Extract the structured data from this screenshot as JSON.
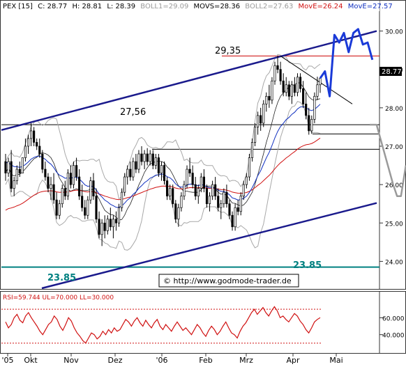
{
  "chart_data": [
    {
      "type": "candlestick",
      "title": "PEX [15]",
      "header": {
        "ticker": "PEX [15]",
        "c": "C: 28.77",
        "h": "H: 28.81",
        "l": "L: 28.39",
        "boll1": "BOLL1=29.09",
        "movs": "MOVS=28.36",
        "boll2": "BOLL2=27.63",
        "move1": "MovE=26.24",
        "move2": "MovE=27.57"
      },
      "ylim": [
        23.3,
        30.5
      ],
      "y_ticks": [
        {
          "value": 24.0,
          "label": "24.00"
        },
        {
          "value": 25.0,
          "label": "25.00"
        },
        {
          "value": 26.0,
          "label": "26.00"
        },
        {
          "value": 27.0,
          "label": "27.00"
        },
        {
          "value": 28.0,
          "label": "28.00"
        },
        {
          "value": 29.0,
          "label": "29.00"
        },
        {
          "value": 30.0,
          "label": "30.00"
        }
      ],
      "last_price_label": "28.77",
      "x_ticks": [
        "'05",
        "Okt",
        "Nov",
        "Dez",
        "'06",
        "Feb",
        "Mrz",
        "Apr",
        "Mai"
      ],
      "annotations": {
        "resistance_1": "29,35",
        "resistance_2": "27,56",
        "support_left": "23.85",
        "support_right": "23.85",
        "source": "© http://www.godmode-trader.de"
      },
      "levels": [
        29.35,
        27.56,
        27.32,
        26.92,
        23.85
      ],
      "channel": {
        "upper": [
          [
            0,
            27.42
          ],
          [
            150,
            30.0
          ]
        ],
        "lower": [
          [
            25,
            23.3
          ],
          [
            150,
            25.52
          ]
        ]
      },
      "ohlc": [
        [
          26.6,
          26.8,
          26.1,
          26.3
        ],
        [
          26.3,
          26.7,
          26.2,
          26.6
        ],
        [
          26.6,
          26.9,
          25.8,
          25.9
        ],
        [
          25.9,
          26.2,
          25.7,
          26.1
        ],
        [
          26.1,
          26.5,
          26.0,
          26.4
        ],
        [
          26.4,
          26.6,
          26.2,
          26.3
        ],
        [
          26.3,
          26.7,
          26.3,
          26.7
        ],
        [
          26.7,
          27.2,
          26.6,
          27.0
        ],
        [
          27.0,
          27.3,
          26.8,
          27.2
        ],
        [
          27.2,
          27.6,
          27.0,
          27.4
        ],
        [
          27.4,
          27.5,
          27.0,
          27.1
        ],
        [
          27.1,
          27.2,
          26.9,
          27.0
        ],
        [
          27.0,
          27.2,
          26.7,
          26.8
        ],
        [
          26.8,
          26.9,
          26.3,
          26.4
        ],
        [
          26.4,
          26.6,
          26.1,
          26.2
        ],
        [
          26.2,
          26.3,
          25.8,
          25.9
        ],
        [
          25.9,
          26.2,
          25.6,
          26.0
        ],
        [
          26.0,
          26.3,
          25.5,
          25.6
        ],
        [
          25.6,
          25.8,
          25.1,
          25.2
        ],
        [
          25.2,
          25.6,
          25.1,
          25.5
        ],
        [
          25.5,
          26.0,
          25.4,
          25.9
        ],
        [
          25.9,
          26.1,
          25.6,
          25.7
        ],
        [
          25.7,
          26.4,
          25.6,
          26.3
        ],
        [
          26.3,
          26.5,
          25.9,
          26.0
        ],
        [
          26.0,
          26.6,
          25.9,
          26.5
        ],
        [
          26.5,
          26.7,
          26.1,
          26.2
        ],
        [
          26.2,
          26.4,
          25.6,
          25.7
        ],
        [
          25.7,
          26.0,
          25.3,
          25.4
        ],
        [
          25.4,
          25.6,
          25.1,
          25.2
        ],
        [
          25.2,
          25.7,
          25.1,
          25.6
        ],
        [
          25.6,
          26.2,
          25.5,
          26.1
        ],
        [
          26.1,
          26.3,
          25.6,
          25.7
        ],
        [
          25.7,
          25.9,
          25.0,
          25.1
        ],
        [
          25.1,
          25.3,
          24.6,
          24.7
        ],
        [
          24.7,
          25.1,
          24.4,
          25.0
        ],
        [
          25.0,
          25.2,
          24.6,
          24.8
        ],
        [
          24.8,
          25.2,
          24.7,
          25.1
        ],
        [
          25.1,
          25.4,
          24.8,
          24.9
        ],
        [
          24.9,
          25.2,
          24.6,
          25.1
        ],
        [
          25.1,
          25.3,
          24.8,
          25.0
        ],
        [
          25.0,
          25.5,
          24.9,
          25.4
        ],
        [
          25.4,
          25.9,
          25.3,
          25.8
        ],
        [
          25.8,
          26.3,
          25.7,
          26.2
        ],
        [
          26.2,
          26.5,
          26.0,
          26.4
        ],
        [
          26.4,
          26.6,
          26.1,
          26.2
        ],
        [
          26.2,
          26.7,
          26.1,
          26.6
        ],
        [
          26.6,
          26.8,
          26.3,
          26.4
        ],
        [
          26.4,
          26.9,
          26.3,
          26.8
        ],
        [
          26.8,
          27.0,
          26.5,
          26.6
        ],
        [
          26.6,
          26.9,
          26.4,
          26.8
        ],
        [
          26.8,
          26.95,
          26.5,
          26.6
        ],
        [
          26.6,
          26.9,
          26.5,
          26.8
        ],
        [
          26.8,
          26.9,
          26.4,
          26.5
        ],
        [
          26.5,
          26.8,
          26.4,
          26.7
        ],
        [
          26.7,
          26.8,
          26.2,
          26.3
        ],
        [
          26.3,
          26.6,
          26.1,
          26.5
        ],
        [
          26.5,
          26.6,
          26.0,
          26.1
        ],
        [
          26.1,
          26.2,
          25.6,
          25.7
        ],
        [
          25.7,
          26.0,
          25.6,
          25.9
        ],
        [
          25.9,
          26.0,
          25.4,
          25.5
        ],
        [
          25.5,
          25.6,
          25.0,
          25.1
        ],
        [
          25.1,
          25.5,
          24.9,
          25.4
        ],
        [
          25.4,
          25.8,
          25.3,
          25.7
        ],
        [
          25.7,
          26.1,
          25.6,
          26.0
        ],
        [
          26.0,
          26.5,
          25.9,
          26.4
        ],
        [
          26.4,
          26.7,
          26.2,
          26.3
        ],
        [
          26.3,
          26.5,
          25.9,
          26.0
        ],
        [
          26.0,
          26.2,
          25.6,
          25.7
        ],
        [
          25.7,
          26.0,
          25.5,
          25.9
        ],
        [
          25.9,
          26.3,
          25.8,
          26.2
        ],
        [
          26.2,
          26.4,
          25.8,
          25.9
        ],
        [
          25.9,
          26.0,
          25.4,
          25.5
        ],
        [
          25.5,
          25.8,
          25.3,
          25.7
        ],
        [
          25.7,
          26.1,
          25.6,
          26.0
        ],
        [
          26.0,
          26.2,
          25.6,
          25.7
        ],
        [
          25.7,
          25.9,
          25.3,
          25.4
        ],
        [
          25.4,
          25.6,
          25.1,
          25.5
        ],
        [
          25.5,
          25.9,
          25.4,
          25.8
        ],
        [
          25.8,
          26.0,
          25.4,
          25.5
        ],
        [
          25.5,
          25.6,
          25.1,
          25.2
        ],
        [
          25.2,
          25.3,
          24.8,
          24.9
        ],
        [
          24.9,
          25.5,
          24.8,
          25.4
        ],
        [
          25.4,
          25.6,
          25.2,
          25.3
        ],
        [
          25.3,
          25.8,
          25.2,
          25.7
        ],
        [
          25.7,
          26.1,
          25.6,
          26.0
        ],
        [
          26.0,
          26.3,
          25.9,
          26.2
        ],
        [
          26.2,
          26.8,
          26.1,
          26.7
        ],
        [
          26.7,
          27.2,
          26.6,
          27.1
        ],
        [
          27.1,
          27.6,
          27.0,
          27.5
        ],
        [
          27.5,
          27.9,
          27.3,
          27.8
        ],
        [
          27.8,
          28.0,
          27.4,
          27.6
        ],
        [
          27.6,
          28.2,
          27.5,
          28.1
        ],
        [
          28.1,
          28.4,
          27.9,
          28.3
        ],
        [
          28.3,
          28.6,
          28.0,
          28.2
        ],
        [
          28.2,
          28.8,
          28.1,
          28.7
        ],
        [
          28.7,
          29.2,
          28.6,
          29.1
        ],
        [
          29.1,
          29.35,
          28.9,
          29.0
        ],
        [
          29.0,
          29.2,
          28.6,
          28.7
        ],
        [
          28.7,
          28.9,
          28.3,
          28.4
        ],
        [
          28.4,
          28.8,
          28.3,
          28.6
        ],
        [
          28.6,
          28.7,
          28.2,
          28.3
        ],
        [
          28.3,
          28.7,
          28.1,
          28.6
        ],
        [
          28.6,
          28.8,
          28.3,
          28.4
        ],
        [
          28.4,
          28.9,
          28.3,
          28.8
        ],
        [
          28.8,
          28.9,
          28.4,
          28.5
        ],
        [
          28.5,
          28.7,
          28.0,
          28.1
        ],
        [
          28.1,
          28.4,
          27.7,
          27.8
        ],
        [
          27.8,
          28.0,
          27.3,
          27.4
        ],
        [
          27.4,
          27.8,
          27.32,
          27.7
        ],
        [
          27.7,
          28.4,
          27.6,
          28.3
        ],
        [
          28.3,
          28.81,
          28.2,
          28.6
        ],
        [
          28.6,
          28.81,
          28.39,
          28.77
        ]
      ],
      "forecast_path": [
        [
          28.77,
          0
        ],
        [
          28.95,
          1
        ],
        [
          28.3,
          2
        ],
        [
          29.9,
          3
        ],
        [
          29.7,
          4
        ],
        [
          29.95,
          5
        ],
        [
          29.45,
          6
        ],
        [
          29.95,
          7
        ],
        [
          30.05,
          8
        ],
        [
          29.65,
          9
        ],
        [
          29.7,
          10
        ],
        [
          29.25,
          11
        ]
      ],
      "forecast_alt": [
        [
          27.56,
          0
        ],
        [
          27.56,
          1.4
        ],
        [
          26.0,
          4.8
        ],
        [
          25.7,
          5.6
        ],
        [
          25.7,
          6.4
        ],
        [
          26.5,
          7.4
        ]
      ],
      "rsi": {
        "label": "RSI=59.744 UL=70.000 LL=30.000",
        "ylim": [
          20,
          80
        ],
        "ticks": [
          {
            "value": 40,
            "label": "40.000"
          },
          {
            "value": 60,
            "label": "60.000"
          }
        ],
        "ul": 70,
        "ll": 30,
        "values": [
          55,
          48,
          52,
          60,
          64,
          57,
          54,
          62,
          66,
          60,
          55,
          50,
          44,
          40,
          46,
          52,
          55,
          62,
          58,
          50,
          45,
          52,
          60,
          56,
          48,
          42,
          38,
          33,
          30,
          36,
          42,
          40,
          35,
          38,
          44,
          40,
          46,
          42,
          48,
          44,
          46,
          52,
          58,
          55,
          50,
          56,
          60,
          54,
          50,
          57,
          52,
          48,
          54,
          58,
          50,
          46,
          52,
          48,
          44,
          50,
          55,
          50,
          45,
          48,
          44,
          40,
          46,
          52,
          48,
          42,
          38,
          45,
          50,
          46,
          40,
          44,
          50,
          55,
          48,
          42,
          40,
          36,
          44,
          50,
          54,
          60,
          66,
          70,
          64,
          68,
          72,
          66,
          62,
          68,
          73,
          68,
          60,
          62,
          58,
          55,
          60,
          65,
          62,
          56,
          52,
          46,
          42,
          48,
          55,
          58,
          60
        ]
      }
    }
  ]
}
